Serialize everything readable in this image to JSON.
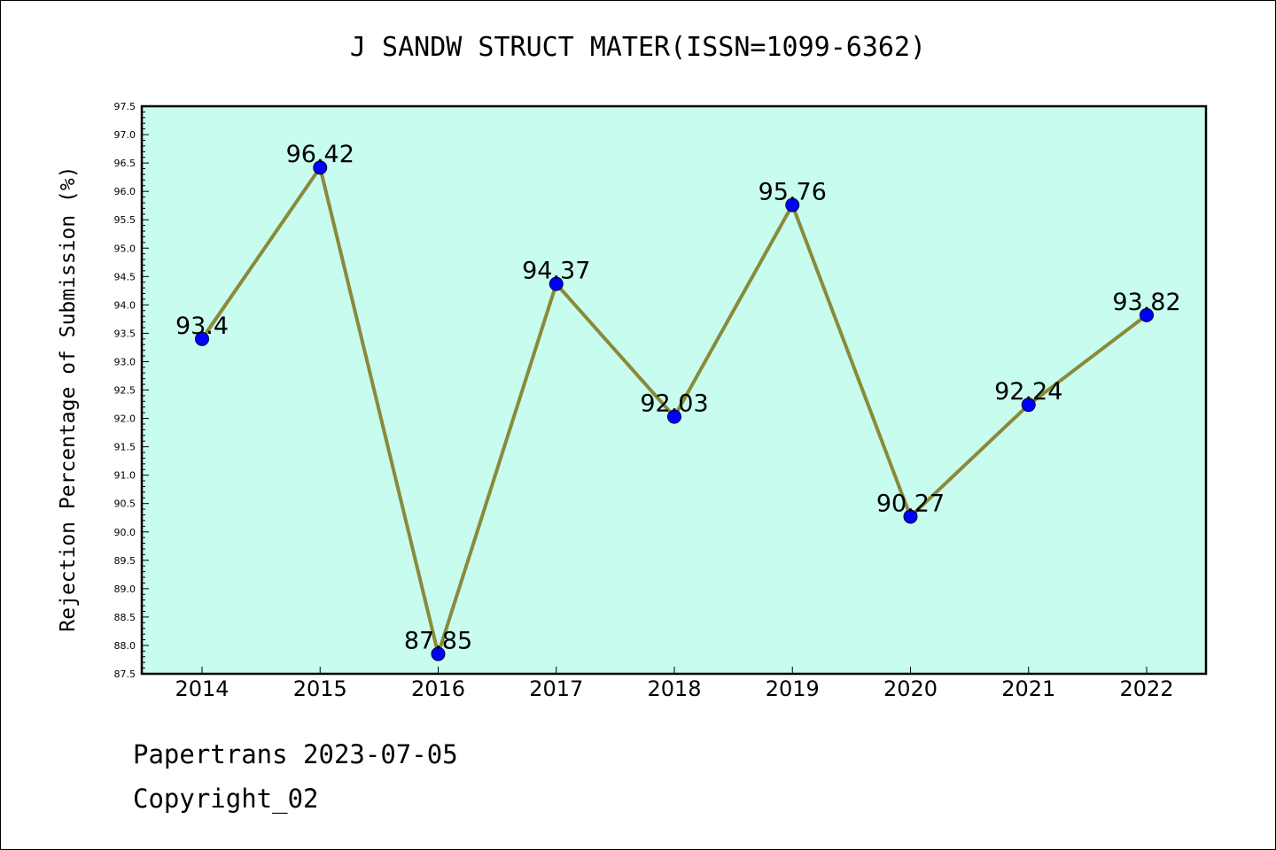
{
  "chart_data": {
    "type": "line",
    "title": "J SANDW STRUCT MATER(ISSN=1099-6362)",
    "xlabel": "",
    "ylabel": "Rejection Percentage of Submission (%)",
    "categories": [
      "2014",
      "2015",
      "2016",
      "2017",
      "2018",
      "2019",
      "2020",
      "2021",
      "2022"
    ],
    "values": [
      93.4,
      96.42,
      87.85,
      94.37,
      92.03,
      95.76,
      90.27,
      92.24,
      93.82
    ],
    "data_labels": [
      "93.4",
      "96.42",
      "87.85",
      "94.37",
      "92.03",
      "95.76",
      "90.27",
      "92.24",
      "93.82"
    ],
    "ylim": [
      87.5,
      97.5
    ],
    "yticks": [
      "87.5",
      "88.0",
      "88.5",
      "89.0",
      "89.5",
      "90.0",
      "90.5",
      "91.0",
      "91.5",
      "92.0",
      "92.5",
      "93.0",
      "93.5",
      "94.0",
      "94.5",
      "95.0",
      "95.5",
      "96.0",
      "96.5",
      "97.0",
      "97.5"
    ],
    "grid": false,
    "colors": {
      "plot_background": "#c8fcee",
      "line": "#8a8a3a",
      "marker": "#0000ff"
    }
  },
  "footer": {
    "line1": "Papertrans 2023-07-05",
    "line2": "Copyright_02"
  }
}
